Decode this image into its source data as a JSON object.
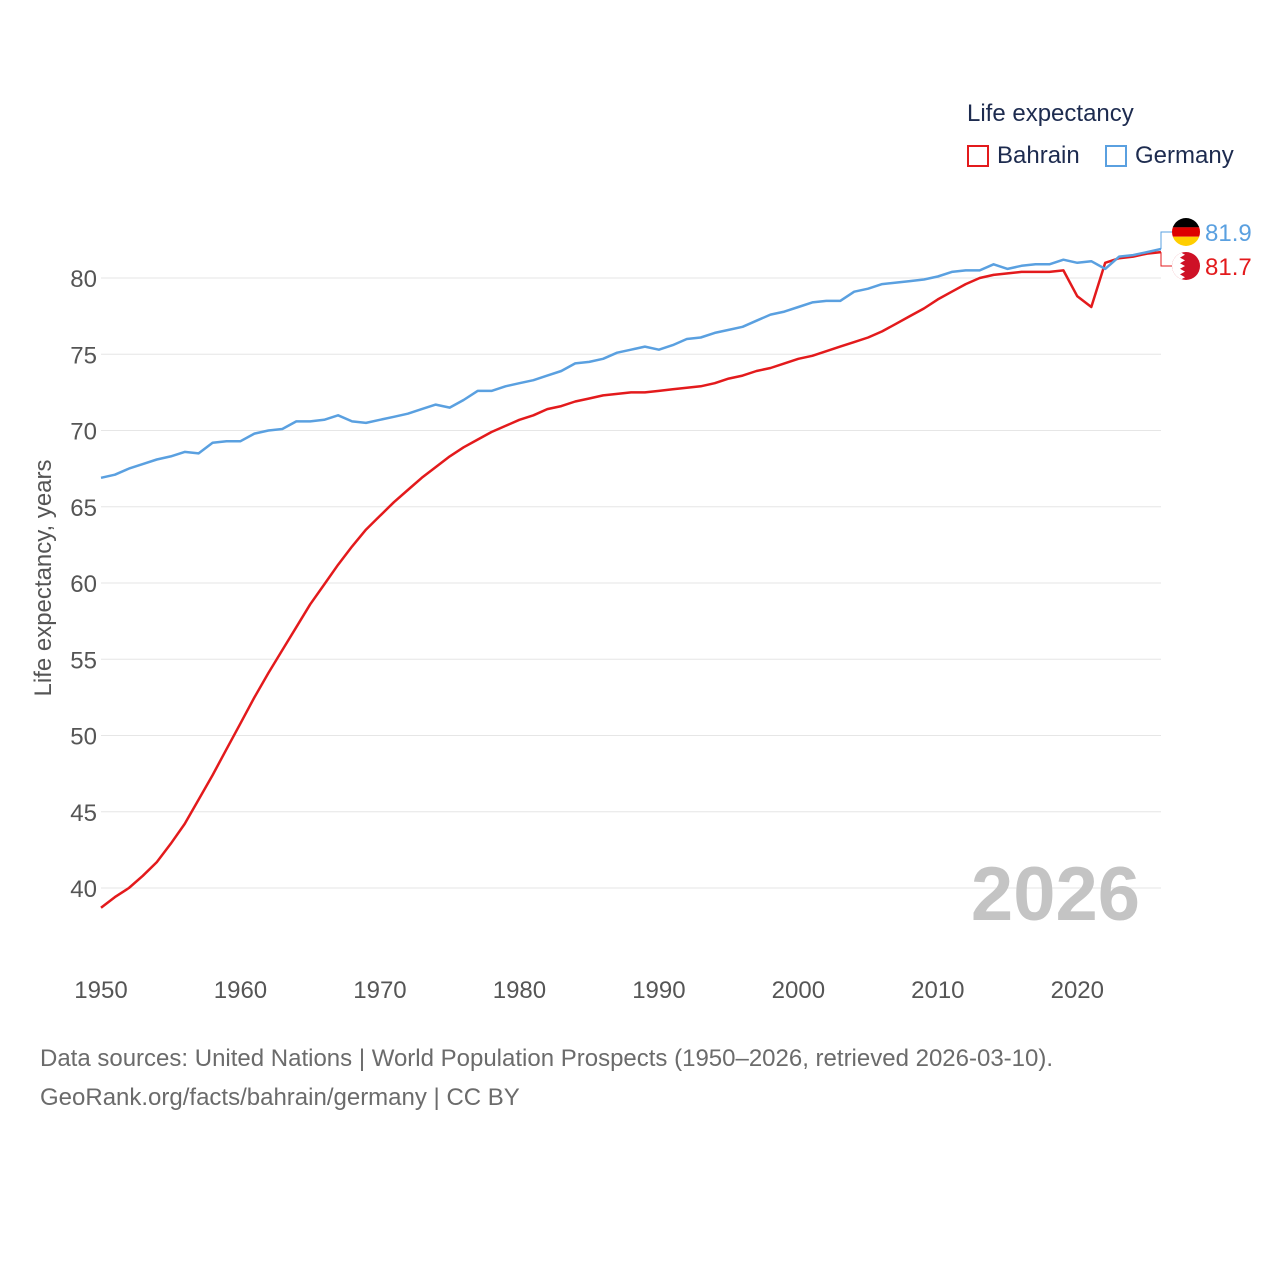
{
  "legend": {
    "title": "Life expectancy",
    "items": [
      {
        "name": "Bahrain",
        "color": "#e31a1c"
      },
      {
        "name": "Germany",
        "color": "#5aa0e0"
      }
    ]
  },
  "footer": {
    "sources": "Data sources: United Nations | World Population Prospects (1950–2026, retrieved 2026-03-10).",
    "link": "GeoRank.org/facts/bahrain/germany | CC BY"
  },
  "chart_data": {
    "type": "line",
    "title": "Life expectancy",
    "xlabel": "",
    "ylabel": "Life expectancy, years",
    "xlim": [
      1950,
      2026
    ],
    "ylim": [
      36,
      84
    ],
    "xticks": [
      1950,
      1960,
      1970,
      1980,
      1990,
      2000,
      2010,
      2020
    ],
    "yticks": [
      40,
      45,
      50,
      55,
      60,
      65,
      70,
      75,
      80
    ],
    "grid": true,
    "year_label": "2026",
    "x": [
      1950,
      1951,
      1952,
      1953,
      1954,
      1955,
      1956,
      1957,
      1958,
      1959,
      1960,
      1961,
      1962,
      1963,
      1964,
      1965,
      1966,
      1967,
      1968,
      1969,
      1970,
      1971,
      1972,
      1973,
      1974,
      1975,
      1976,
      1977,
      1978,
      1979,
      1980,
      1981,
      1982,
      1983,
      1984,
      1985,
      1986,
      1987,
      1988,
      1989,
      1990,
      1991,
      1992,
      1993,
      1994,
      1995,
      1996,
      1997,
      1998,
      1999,
      2000,
      2001,
      2002,
      2003,
      2004,
      2005,
      2006,
      2007,
      2008,
      2009,
      2010,
      2011,
      2012,
      2013,
      2014,
      2015,
      2016,
      2017,
      2018,
      2019,
      2020,
      2021,
      2022,
      2023,
      2024,
      2025,
      2026
    ],
    "series": [
      {
        "name": "Bahrain",
        "color": "#e31a1c",
        "end_label": "81.7",
        "values": [
          38.7,
          39.4,
          40.0,
          40.8,
          41.7,
          42.9,
          44.2,
          45.8,
          47.4,
          49.1,
          50.8,
          52.5,
          54.1,
          55.6,
          57.1,
          58.6,
          59.9,
          61.2,
          62.4,
          63.5,
          64.4,
          65.3,
          66.1,
          66.9,
          67.6,
          68.3,
          68.9,
          69.4,
          69.9,
          70.3,
          70.7,
          71.0,
          71.4,
          71.6,
          71.9,
          72.1,
          72.3,
          72.4,
          72.5,
          72.5,
          72.6,
          72.7,
          72.8,
          72.9,
          73.1,
          73.4,
          73.6,
          73.9,
          74.1,
          74.4,
          74.7,
          74.9,
          75.2,
          75.5,
          75.8,
          76.1,
          76.5,
          77.0,
          77.5,
          78.0,
          78.6,
          79.1,
          79.6,
          80.0,
          80.2,
          80.3,
          80.4,
          80.4,
          80.4,
          80.5,
          78.8,
          78.1,
          81.0,
          81.3,
          81.4,
          81.6,
          81.7
        ]
      },
      {
        "name": "Germany",
        "color": "#5aa0e0",
        "end_label": "81.9",
        "values": [
          66.9,
          67.1,
          67.5,
          67.8,
          68.1,
          68.3,
          68.6,
          68.5,
          69.2,
          69.3,
          69.3,
          69.8,
          70.0,
          70.1,
          70.6,
          70.6,
          70.7,
          71.0,
          70.6,
          70.5,
          70.7,
          70.9,
          71.1,
          71.4,
          71.7,
          71.5,
          72.0,
          72.6,
          72.6,
          72.9,
          73.1,
          73.3,
          73.6,
          73.9,
          74.4,
          74.5,
          74.7,
          75.1,
          75.3,
          75.5,
          75.3,
          75.6,
          76.0,
          76.1,
          76.4,
          76.6,
          76.8,
          77.2,
          77.6,
          77.8,
          78.1,
          78.4,
          78.5,
          78.5,
          79.1,
          79.3,
          79.6,
          79.7,
          79.8,
          79.9,
          80.1,
          80.4,
          80.5,
          80.5,
          80.9,
          80.6,
          80.8,
          80.9,
          80.9,
          81.2,
          81.0,
          81.1,
          80.6,
          81.4,
          81.5,
          81.7,
          81.9
        ]
      }
    ]
  }
}
